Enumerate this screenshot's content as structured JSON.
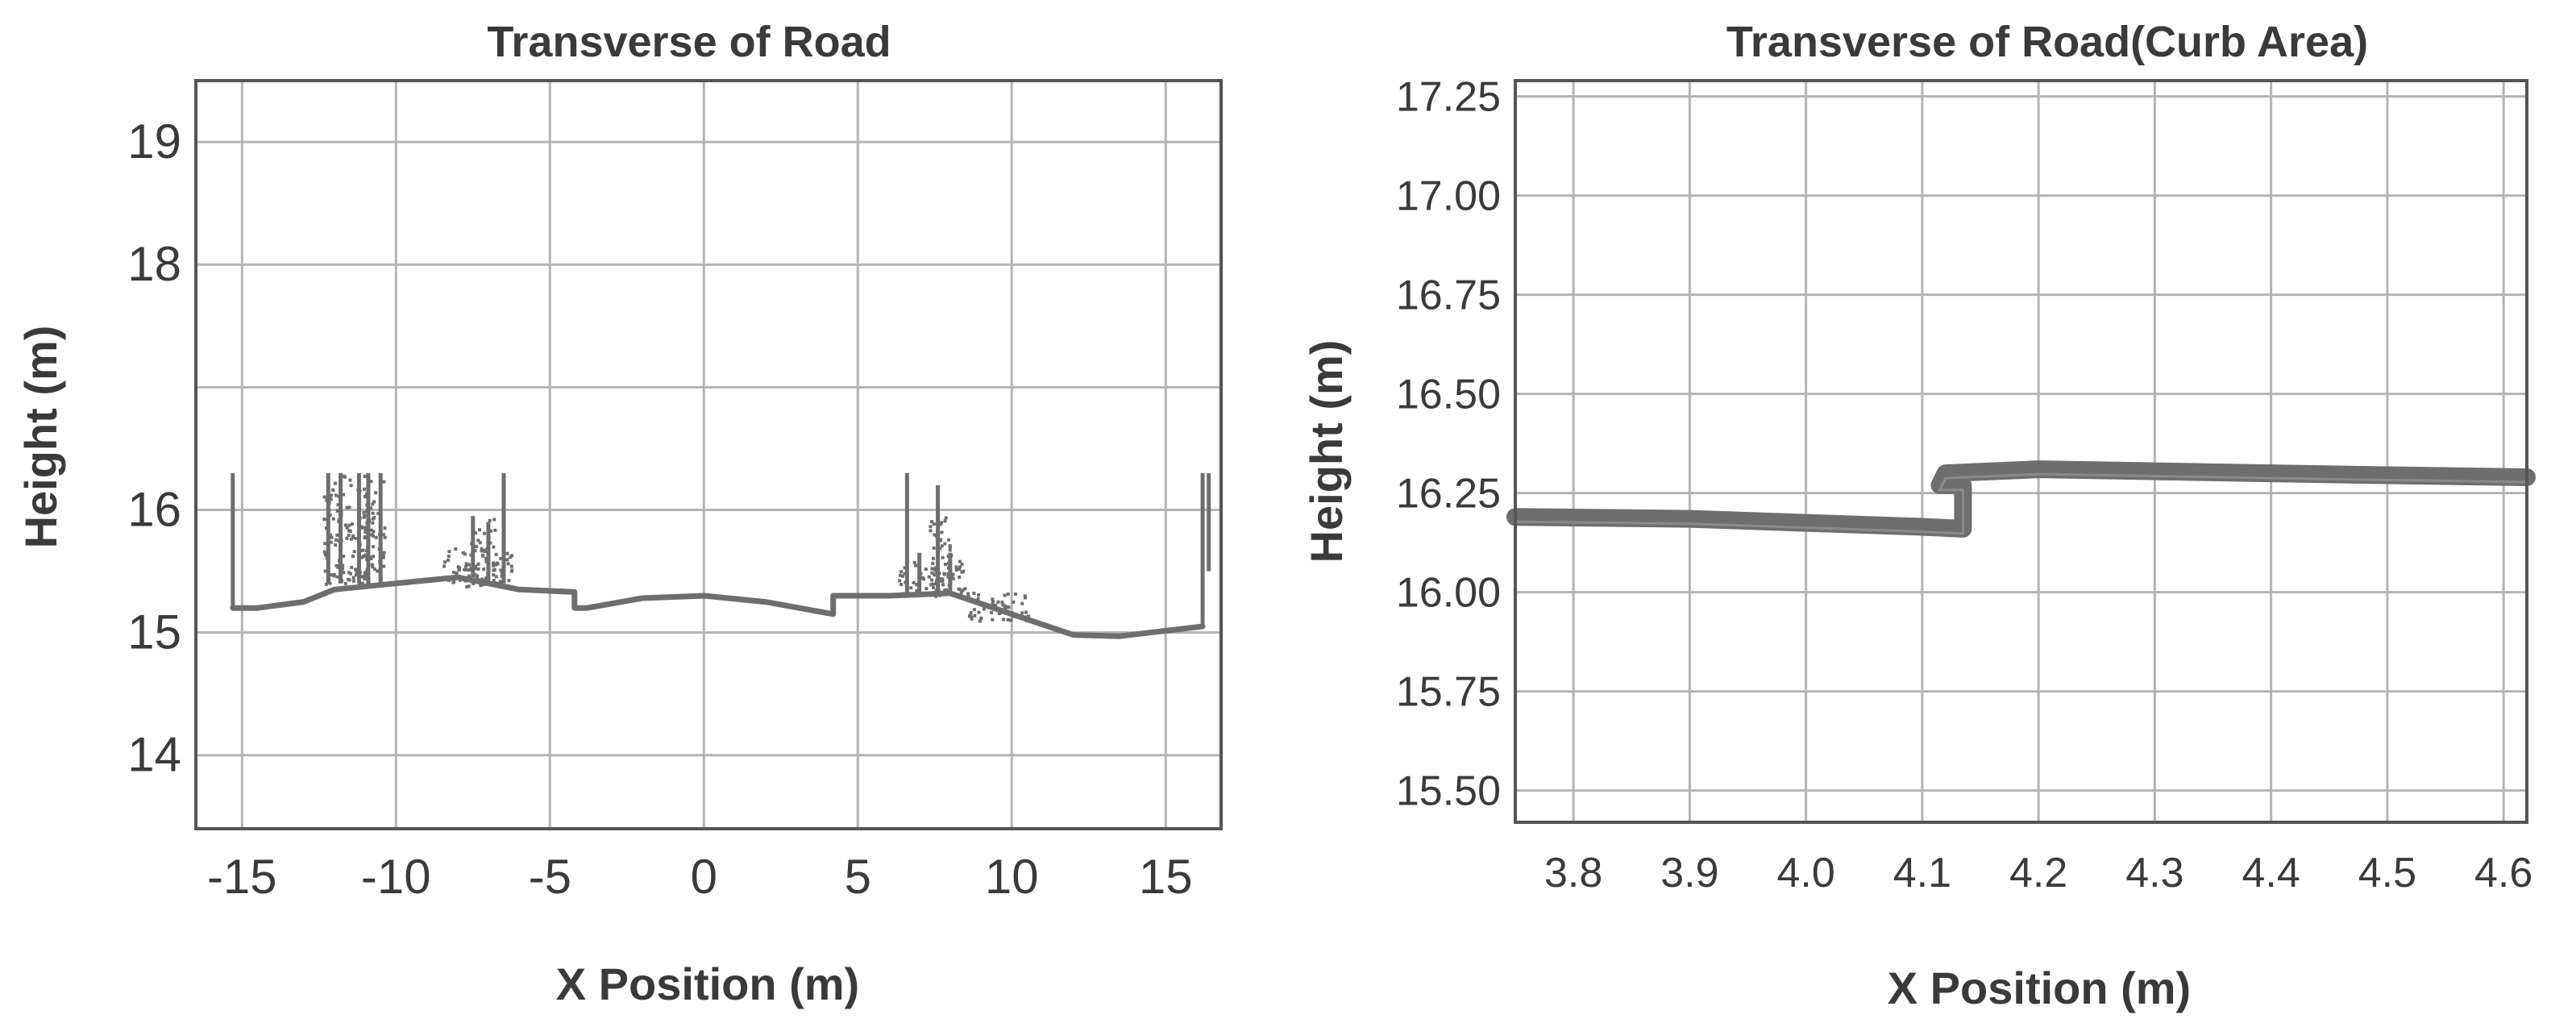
{
  "colors": {
    "points": "#6e6e6e",
    "grid": "#b4b4b4",
    "axis": "#555555",
    "text": "#3a3a3a"
  },
  "chart_data": [
    {
      "type": "scatter",
      "title": "Transverse of Road",
      "xlabel": "X Position (m)",
      "ylabel": "Height (m)",
      "xlim": [
        -16.5,
        16.8
      ],
      "ylim": [
        13.4,
        19.5
      ],
      "xticks": [
        -15,
        -10,
        -5,
        0,
        5,
        10,
        15
      ],
      "xtick_labels": [
        "-15",
        "-10",
        "-5",
        "0",
        "5",
        "10",
        "15"
      ],
      "yticks": [
        14,
        15,
        16,
        17,
        18,
        19
      ],
      "ytick_labels": [
        "14",
        "15",
        "16",
        "",
        "18",
        "19"
      ],
      "grid": true,
      "series": [
        {
          "profile": [
            [
              -15.3,
              15.2
            ],
            [
              -14.5,
              15.2
            ],
            [
              -13,
              15.25
            ],
            [
              -12,
              15.35
            ],
            [
              -10,
              15.4
            ],
            [
              -8,
              15.45
            ],
            [
              -6,
              15.35
            ],
            [
              -4.2,
              15.33
            ],
            [
              -4.2,
              15.2
            ],
            [
              -3.8,
              15.2
            ],
            [
              -2,
              15.28
            ],
            [
              0,
              15.3
            ],
            [
              2,
              15.25
            ],
            [
              4.2,
              15.15
            ],
            [
              4.2,
              15.3
            ],
            [
              6,
              15.3
            ],
            [
              8,
              15.32
            ],
            [
              10,
              15.15
            ],
            [
              12,
              14.98
            ],
            [
              13.5,
              14.97
            ],
            [
              16.2,
              15.05
            ]
          ],
          "spikes": [
            [
              -15.3,
              15.2,
              16.3
            ],
            [
              -12.2,
              15.4,
              16.3
            ],
            [
              -11.8,
              15.4,
              16.3
            ],
            [
              -11.2,
              15.4,
              16.3
            ],
            [
              -10.9,
              15.4,
              16.3
            ],
            [
              -10.5,
              15.4,
              16.3
            ],
            [
              -7.5,
              15.45,
              15.95
            ],
            [
              -7,
              15.4,
              15.9
            ],
            [
              -6.5,
              15.4,
              16.3
            ],
            [
              6.6,
              15.3,
              16.3
            ],
            [
              7.0,
              15.3,
              15.65
            ],
            [
              7.6,
              15.3,
              16.2
            ],
            [
              8.0,
              15.3,
              15.65
            ],
            [
              16.2,
              15.05,
              16.3
            ],
            [
              16.4,
              15.5,
              16.3
            ]
          ],
          "clusters": [
            [
              -12.4,
              -10.4,
              15.4,
              16.3
            ],
            [
              -8.5,
              -6.2,
              15.38,
              15.7
            ],
            [
              -7.6,
              -6.8,
              15.4,
              15.95
            ],
            [
              6.3,
              8.5,
              15.3,
              15.6
            ],
            [
              7.3,
              8.0,
              15.3,
              15.95
            ],
            [
              8.5,
              10.5,
              15.1,
              15.35
            ]
          ]
        }
      ]
    },
    {
      "type": "scatter",
      "title": "Transverse of Road(Curb Area)",
      "xlabel": "X Position (m)",
      "ylabel": "Height (m)",
      "xlim": [
        3.75,
        4.62
      ],
      "ylim": [
        15.42,
        17.29
      ],
      "xticks": [
        3.8,
        3.9,
        4.0,
        4.1,
        4.2,
        4.3,
        4.4,
        4.5,
        4.6
      ],
      "xtick_labels": [
        "3.8",
        "3.9",
        "4.0",
        "4.1",
        "4.2",
        "4.3",
        "4.4",
        "4.5",
        "4.6"
      ],
      "yticks": [
        15.5,
        15.75,
        16.0,
        16.25,
        16.5,
        16.75,
        17.0,
        17.25
      ],
      "ytick_labels": [
        "15.50",
        "15.75",
        "16.00",
        "16.25",
        "16.50",
        "16.75",
        "17.00",
        "17.25"
      ],
      "grid": true,
      "series": [
        {
          "profile": [
            [
              3.75,
              16.19
            ],
            [
              3.9,
              16.185
            ],
            [
              4.0,
              16.175
            ],
            [
              4.1,
              16.165
            ],
            [
              4.135,
              16.16
            ],
            [
              4.135,
              16.27
            ],
            [
              4.115,
              16.27
            ],
            [
              4.12,
              16.3
            ],
            [
              4.2,
              16.31
            ],
            [
              4.3,
              16.305
            ],
            [
              4.4,
              16.3
            ],
            [
              4.5,
              16.295
            ],
            [
              4.62,
              16.29
            ]
          ]
        }
      ]
    }
  ]
}
